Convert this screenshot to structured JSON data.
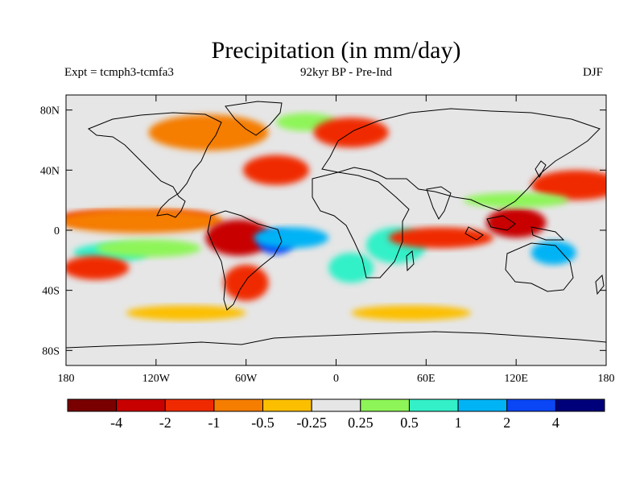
{
  "title": "Precipitation (in mm/day)",
  "subtitle_left": "Expt = tcmph3-tcmfa3",
  "subtitle_center": "92kyr BP - Pre-Ind",
  "subtitle_right": "DJF",
  "x_ticks": [
    {
      "lon": -180,
      "label": "180"
    },
    {
      "lon": -120,
      "label": "120W"
    },
    {
      "lon": -60,
      "label": "60W"
    },
    {
      "lon": 0,
      "label": "0"
    },
    {
      "lon": 60,
      "label": "60E"
    },
    {
      "lon": 120,
      "label": "120E"
    },
    {
      "lon": 180,
      "label": "180"
    }
  ],
  "y_ticks": [
    {
      "lat": 80,
      "label": "80N"
    },
    {
      "lat": 40,
      "label": "40N"
    },
    {
      "lat": 0,
      "label": "0"
    },
    {
      "lat": -40,
      "label": "40S"
    },
    {
      "lat": -80,
      "label": "80S"
    }
  ],
  "lon_range": [
    -180,
    180
  ],
  "lat_range": [
    -90,
    90
  ],
  "colorbar": {
    "colors": [
      "#7a0000",
      "#c80000",
      "#f02a00",
      "#f57d00",
      "#fcbf00",
      "#e6e6e6",
      "#8ef558",
      "#33f0c8",
      "#00b3f5",
      "#0a46f5",
      "#00007a"
    ],
    "labels": [
      "-4",
      "-2",
      "-1",
      "-0.5",
      "-0.25",
      "0.25",
      "0.5",
      "1",
      "2",
      "4"
    ]
  },
  "chart_data": {
    "type": "heatmap",
    "variable": "Precipitation (in mm/day)",
    "experiment": "tcmph3-tcmfa3",
    "comparison": "92kyr BP - Pre-Ind",
    "season": "DJF",
    "x_range": [
      -180,
      180
    ],
    "y_range": [
      -90,
      90
    ],
    "levels": [
      -4,
      -2,
      -1,
      -0.5,
      -0.25,
      0.25,
      0.5,
      1,
      2,
      4
    ],
    "anomaly_patches": [
      {
        "lon": -155,
        "lat": 8,
        "value": -1,
        "rlon": 30,
        "rlat": 5
      },
      {
        "lon": -110,
        "lat": 8,
        "value": -1,
        "rlon": 30,
        "rlat": 5
      },
      {
        "lon": -130,
        "lat": 6,
        "value": -0.5,
        "rlon": 55,
        "rlat": 8
      },
      {
        "lon": -150,
        "lat": -15,
        "value": 1,
        "rlon": 25,
        "rlat": 6
      },
      {
        "lon": -160,
        "lat": -25,
        "value": -1,
        "rlon": 22,
        "rlat": 8
      },
      {
        "lon": -125,
        "lat": -12,
        "value": 0.5,
        "rlon": 35,
        "rlat": 6
      },
      {
        "lon": -65,
        "lat": -5,
        "value": -2,
        "rlon": 22,
        "rlat": 12
      },
      {
        "lon": -40,
        "lat": -8,
        "value": 4,
        "rlon": 12,
        "rlat": 8
      },
      {
        "lon": -30,
        "lat": -5,
        "value": 2,
        "rlon": 25,
        "rlat": 7
      },
      {
        "lon": -60,
        "lat": -35,
        "value": -1,
        "rlon": 15,
        "rlat": 12
      },
      {
        "lon": -40,
        "lat": 40,
        "value": -1,
        "rlon": 22,
        "rlat": 10
      },
      {
        "lon": -20,
        "lat": 72,
        "value": 0.5,
        "rlon": 20,
        "rlat": 6
      },
      {
        "lon": -85,
        "lat": 65,
        "value": -0.5,
        "rlon": 40,
        "rlat": 12
      },
      {
        "lon": 10,
        "lat": 65,
        "value": -1,
        "rlon": 25,
        "rlat": 10
      },
      {
        "lon": 40,
        "lat": -10,
        "value": 1,
        "rlon": 20,
        "rlat": 12
      },
      {
        "lon": 10,
        "lat": -25,
        "value": 1,
        "rlon": 15,
        "rlat": 10
      },
      {
        "lon": 70,
        "lat": -5,
        "value": -1,
        "rlon": 35,
        "rlat": 7
      },
      {
        "lon": 120,
        "lat": 5,
        "value": -2,
        "rlon": 20,
        "rlat": 10
      },
      {
        "lon": 145,
        "lat": -15,
        "value": 2,
        "rlon": 15,
        "rlat": 8
      },
      {
        "lon": 160,
        "lat": 30,
        "value": -1,
        "rlon": 30,
        "rlat": 10
      },
      {
        "lon": 120,
        "lat": 20,
        "value": 0.5,
        "rlon": 35,
        "rlat": 5
      },
      {
        "lon": -100,
        "lat": -55,
        "value": -0.25,
        "rlon": 40,
        "rlat": 5
      },
      {
        "lon": 50,
        "lat": -55,
        "value": -0.25,
        "rlon": 40,
        "rlat": 5
      }
    ]
  }
}
